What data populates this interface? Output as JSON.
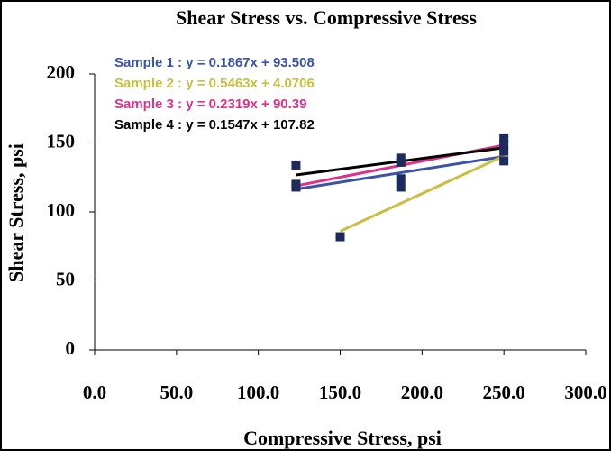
{
  "chart_data": {
    "type": "scatter",
    "title": "Shear Stress vs. Compressive Stress",
    "xlabel": "Compressive Stress, psi",
    "ylabel": "Shear Stress, psi",
    "xlim": [
      0,
      300
    ],
    "ylim": [
      0,
      200
    ],
    "xticks": [
      {
        "value": 0,
        "label": "0.0"
      },
      {
        "value": 50,
        "label": "50.0"
      },
      {
        "value": 100,
        "label": "100.0"
      },
      {
        "value": 150,
        "label": "150.0"
      },
      {
        "value": 200,
        "label": "200.0"
      },
      {
        "value": 250,
        "label": "250.0"
      },
      {
        "value": 300,
        "label": "300.0"
      }
    ],
    "yticks": [
      0,
      50,
      100,
      150,
      200
    ],
    "points": {
      "color": "#1c2a5c",
      "x": [
        123,
        123,
        123,
        150,
        187,
        187,
        187,
        187,
        250,
        250,
        250,
        250
      ],
      "values": [
        134,
        120,
        118,
        82,
        139,
        136,
        124,
        118,
        153,
        149,
        144,
        137
      ]
    },
    "series": [
      {
        "name": "Sample 1 : y = 0.1867x + 93.508",
        "color": "#3a52a8",
        "x": [
          123,
          250
        ],
        "values": [
          116.5,
          140.2
        ]
      },
      {
        "name": "Sample 2 : y = 0.5463x + 4.0706",
        "color": "#c8c040",
        "x": [
          150,
          250
        ],
        "values": [
          86,
          140.6
        ]
      },
      {
        "name": "Sample 3 : y = 0.2319x + 90.39",
        "color": "#e0308a",
        "x": [
          123,
          250
        ],
        "values": [
          118.9,
          148.4
        ]
      },
      {
        "name": "Sample 4 : y = 0.1547x + 107.82",
        "color": "#000000",
        "x": [
          123,
          250
        ],
        "values": [
          126.8,
          146.5
        ]
      }
    ]
  }
}
